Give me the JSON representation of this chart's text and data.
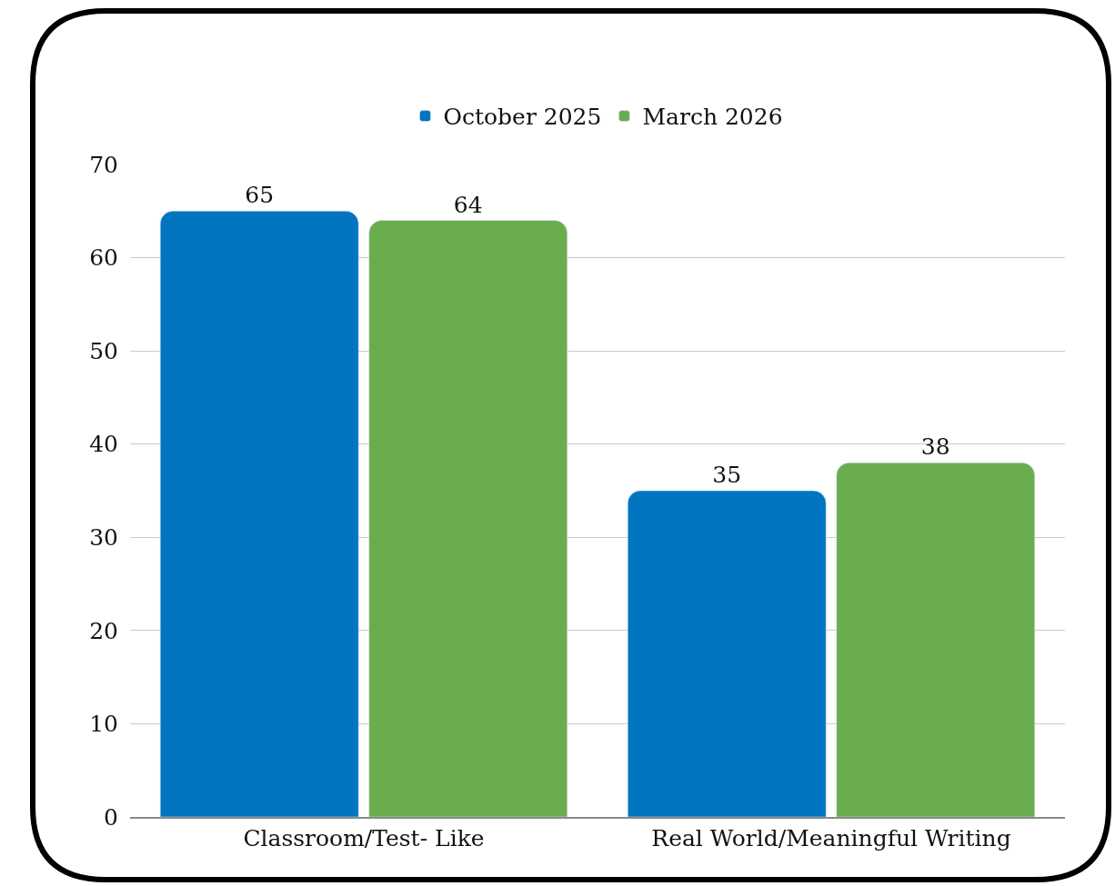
{
  "chart_data": {
    "type": "bar",
    "categories": [
      "Classroom/Test- Like",
      "Real World/Meaningful Writing"
    ],
    "series": [
      {
        "name": "October 2025",
        "color": "#0275c0",
        "values": [
          65,
          35
        ]
      },
      {
        "name": "March 2026",
        "color": "#6aad4f",
        "values": [
          64,
          38
        ]
      }
    ],
    "ylim": [
      0,
      70
    ],
    "yticks": [
      0,
      10,
      20,
      30,
      40,
      50,
      60,
      70
    ],
    "grid": "y",
    "legend": "top",
    "data_labels": true
  }
}
